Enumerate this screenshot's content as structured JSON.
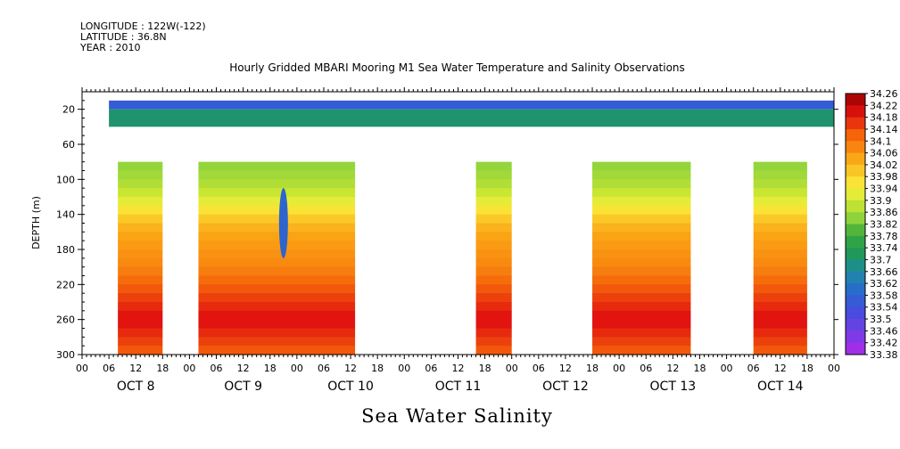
{
  "header": {
    "longitude": "LONGITUDE : 122W(-122)",
    "latitude": "LATITUDE : 36.8N",
    "year": "YEAR : 2010",
    "title": "Hourly Gridded MBARI Mooring M1 Sea Water Temperature and Salinity Observations"
  },
  "chart_data": {
    "type": "heatmap",
    "title": "Hourly Gridded MBARI Mooring M1 Sea Water Temperature and Salinity Observations",
    "xlabel": "",
    "ylabel": "DEPTH (m)",
    "variable_title": "Sea Water Salinity",
    "xlim_hours": [
      0,
      168
    ],
    "ylim": [
      300,
      0
    ],
    "y_ticks": [
      20,
      60,
      100,
      140,
      180,
      220,
      260,
      300
    ],
    "x_tick_labels": [
      "00",
      "06",
      "12",
      "18",
      "00",
      "06",
      "12",
      "18",
      "00",
      "06",
      "12",
      "18",
      "00",
      "06",
      "12",
      "18",
      "00",
      "06",
      "12",
      "18",
      "00",
      "06",
      "12",
      "18",
      "00",
      "06",
      "12",
      "18",
      "00"
    ],
    "day_labels": [
      "OCT  8",
      "OCT  9",
      "OCT 10",
      "OCT 11",
      "OCT 12",
      "OCT 13",
      "OCT 14"
    ],
    "colorbar": {
      "min": 33.38,
      "max": 34.26,
      "step": 0.04,
      "labels": [
        "34.26",
        "34.22",
        "34.18",
        "34.14",
        "34.1",
        "34.06",
        "34.02",
        "33.98",
        "33.94",
        "33.9",
        "33.86",
        "33.82",
        "33.78",
        "33.74",
        "33.7",
        "33.66",
        "33.62",
        "33.58",
        "33.54",
        "33.5",
        "33.46",
        "33.42",
        "33.38"
      ]
    },
    "surface_layer": [
      {
        "depth_top": 10,
        "depth_bottom": 20,
        "value": 33.56
      },
      {
        "depth_top": 20,
        "depth_bottom": 40,
        "value": 33.7
      }
    ],
    "depth_profile": [
      {
        "depth": 80,
        "value": 33.84
      },
      {
        "depth": 100,
        "value": 33.86
      },
      {
        "depth": 120,
        "value": 33.9
      },
      {
        "depth": 140,
        "value": 33.98
      },
      {
        "depth": 160,
        "value": 34.04
      },
      {
        "depth": 180,
        "value": 34.06
      },
      {
        "depth": 200,
        "value": 34.08
      },
      {
        "depth": 220,
        "value": 34.12
      },
      {
        "depth": 240,
        "value": 34.16
      },
      {
        "depth": 260,
        "value": 34.2
      },
      {
        "depth": 280,
        "value": 34.16
      },
      {
        "depth": 300,
        "value": 34.12
      }
    ],
    "data_spans_hours": [
      [
        8,
        18
      ],
      [
        26,
        61
      ],
      [
        88,
        96
      ],
      [
        114,
        136
      ],
      [
        150,
        162
      ]
    ],
    "anomaly": {
      "hour": 45,
      "depth_top": 110,
      "depth_bottom": 190,
      "value": 33.58
    }
  }
}
